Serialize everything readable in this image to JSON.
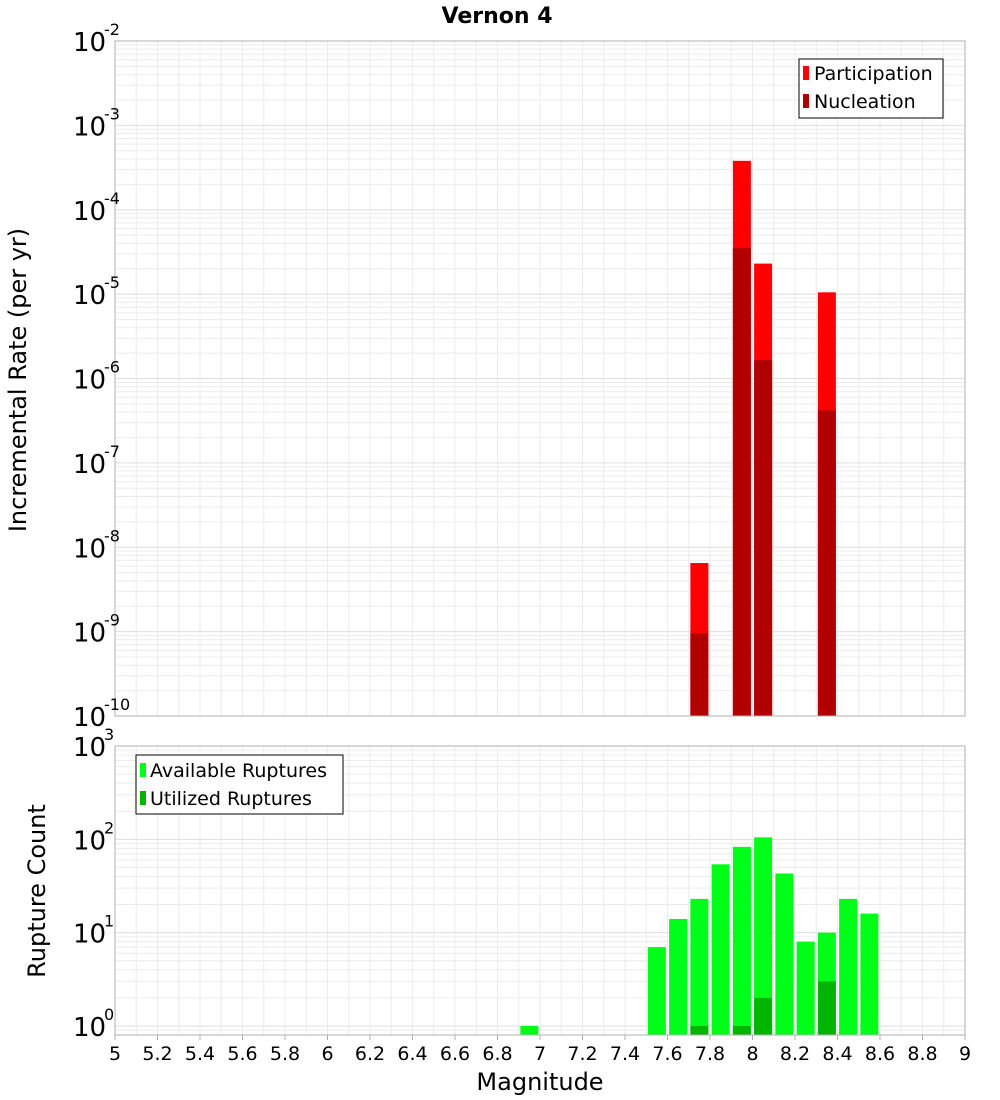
{
  "title": "Vernon 4",
  "xlabel": "Magnitude",
  "x_ticks": [
    "5",
    "5.2",
    "5.4",
    "5.6",
    "5.8",
    "6",
    "6.2",
    "6.4",
    "6.6",
    "6.8",
    "7",
    "7.2",
    "7.4",
    "7.6",
    "7.8",
    "8",
    "8.2",
    "8.4",
    "8.6",
    "8.8",
    "9"
  ],
  "colors": {
    "participation": "#ff0000",
    "nucleation": "#b00000",
    "available": "#00ff18",
    "utilized": "#00b400",
    "grid": "#ececec",
    "frame": "#b0b0b0"
  },
  "chart_data": [
    {
      "type": "bar",
      "title": "Vernon 4",
      "ylabel": "Incremental Rate (per yr)",
      "yscale": "log",
      "ylim": [
        1e-10,
        0.01
      ],
      "xlim": [
        5,
        9
      ],
      "grid": true,
      "legend": "top-right",
      "y_tick_exponents": [
        "-10",
        "-9",
        "-8",
        "-7",
        "-6",
        "-5",
        "-4",
        "-3",
        "-2"
      ],
      "x": [
        7.75,
        7.95,
        8.05,
        8.35
      ],
      "series": [
        {
          "name": "Participation",
          "values": [
            6.5e-09,
            0.00038,
            2.3e-05,
            1.05e-05
          ]
        },
        {
          "name": "Nucleation",
          "values": [
            9.5e-10,
            3.5e-05,
            1.65e-06,
            4.2e-07
          ]
        }
      ]
    },
    {
      "type": "bar",
      "ylabel": "Rupture Count",
      "xlabel": "Magnitude",
      "yscale": "log",
      "ylim": [
        0.8,
        1000
      ],
      "xlim": [
        5,
        9
      ],
      "grid": true,
      "legend": "top-left",
      "y_tick_exponents": [
        "0",
        "1",
        "2",
        "3"
      ],
      "x": [
        6.95,
        7.55,
        7.65,
        7.75,
        7.85,
        7.95,
        8.05,
        8.15,
        8.25,
        8.35,
        8.45,
        8.55
      ],
      "series": [
        {
          "name": "Available Ruptures",
          "values": [
            1,
            7,
            14,
            23,
            54,
            83,
            105,
            43,
            8,
            10,
            23,
            16
          ]
        },
        {
          "name": "Utilized Ruptures",
          "values": [
            0,
            0,
            0,
            1,
            0,
            1,
            2,
            0,
            0,
            3,
            0,
            0
          ]
        }
      ]
    }
  ]
}
